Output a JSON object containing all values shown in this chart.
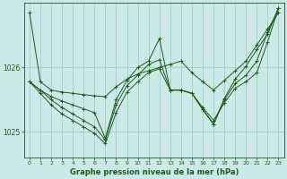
{
  "background_color": "#cce8e8",
  "grid_color": "#99ccbb",
  "line_color": "#1a5c1a",
  "xlabel": "Graphe pression niveau de la mer (hPa)",
  "yticks": [
    1025,
    1026
  ],
  "ylim": [
    1024.6,
    1027.0
  ],
  "xlim": [
    -0.5,
    23.5
  ],
  "xticks": [
    0,
    1,
    2,
    3,
    4,
    5,
    6,
    7,
    8,
    9,
    10,
    11,
    12,
    13,
    14,
    15,
    16,
    17,
    18,
    19,
    20,
    21,
    22,
    23
  ],
  "series": [
    [
      1026.85,
      1025.78,
      1025.65,
      1025.62,
      1025.6,
      1025.58,
      1025.56,
      1025.55,
      1025.7,
      1025.82,
      1025.9,
      1025.95,
      1026.0,
      1026.05,
      1026.1,
      1025.92,
      1025.78,
      1025.65,
      1025.8,
      1025.95,
      1026.1,
      1026.35,
      1026.6,
      1026.85
    ],
    [
      1025.78,
      1025.65,
      1025.55,
      1025.48,
      1025.42,
      1025.36,
      1025.3,
      1024.9,
      1025.5,
      1025.8,
      1026.0,
      1026.1,
      1026.45,
      1025.65,
      1025.65,
      1025.6,
      1025.38,
      1025.18,
      1025.45,
      1025.68,
      1025.78,
      1025.92,
      1026.4,
      1026.92
    ],
    [
      1025.78,
      1025.65,
      1025.5,
      1025.38,
      1025.28,
      1025.18,
      1025.08,
      1024.88,
      1025.42,
      1025.72,
      1025.88,
      1026.05,
      1026.12,
      1025.65,
      1025.65,
      1025.6,
      1025.35,
      1025.12,
      1025.5,
      1025.75,
      1025.88,
      1026.1,
      1026.55,
      1026.92
    ],
    [
      1025.78,
      1025.6,
      1025.42,
      1025.28,
      1025.18,
      1025.08,
      1024.98,
      1024.82,
      1025.3,
      1025.62,
      1025.78,
      1025.92,
      1025.98,
      1025.65,
      1025.65,
      1025.6,
      1025.35,
      1025.12,
      1025.52,
      1025.82,
      1026.02,
      1026.28,
      1026.52,
      1026.92
    ]
  ]
}
